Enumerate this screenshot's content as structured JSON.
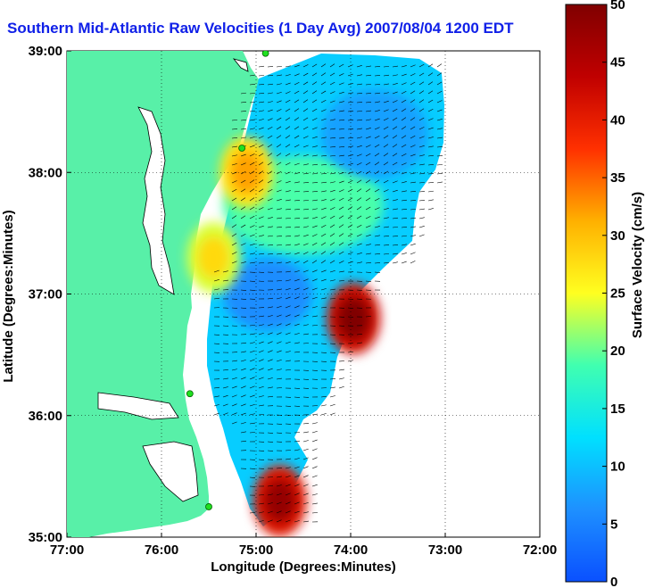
{
  "chart_data": {
    "type": "heatmap",
    "title": "Southern Mid-Atlantic Raw Velocities (1 Day Avg) 2007/08/04 1200 EDT",
    "xlabel": "Longitude (Degrees:Minutes)",
    "ylabel": "Latitude (Degrees:Minutes)",
    "xlim": [
      -77,
      -72
    ],
    "ylim": [
      35,
      39
    ],
    "x_ticks": [
      "77:00",
      "76:00",
      "75:00",
      "74:00",
      "73:00",
      "72:00"
    ],
    "y_ticks": [
      "39:00",
      "38:00",
      "37:00",
      "36:00",
      "35:00"
    ],
    "grid": "dotted",
    "colorbar": {
      "label": "Surface Velocity (cm/s)",
      "min": 0,
      "max": 50,
      "ticks": [
        "50",
        "45",
        "40",
        "35",
        "30",
        "25",
        "20",
        "15",
        "10",
        "5",
        "0"
      ]
    },
    "colors": {
      "land": "#58f0a8",
      "water_outside": "#ffffff",
      "title": "#1020e8",
      "colormap": [
        "#0a50ff",
        "#1e90ff",
        "#00e0ff",
        "#40ffb0",
        "#ffff20",
        "#ffb000",
        "#ff3000",
        "#c00000",
        "#800000"
      ]
    },
    "hotspots": [
      {
        "lon": -73.97,
        "lat": 36.8,
        "speed": 50
      },
      {
        "lon": -74.75,
        "lat": 35.3,
        "speed": 48
      },
      {
        "lon": -75.1,
        "lat": 38.0,
        "speed": 32
      },
      {
        "lon": -75.45,
        "lat": 37.3,
        "speed": 28
      }
    ],
    "stations": [
      {
        "lon": -74.9,
        "lat": 38.98
      },
      {
        "lon": -75.15,
        "lat": 38.2
      },
      {
        "lon": -75.7,
        "lat": 36.18
      },
      {
        "lon": -75.5,
        "lat": 35.25
      }
    ]
  }
}
